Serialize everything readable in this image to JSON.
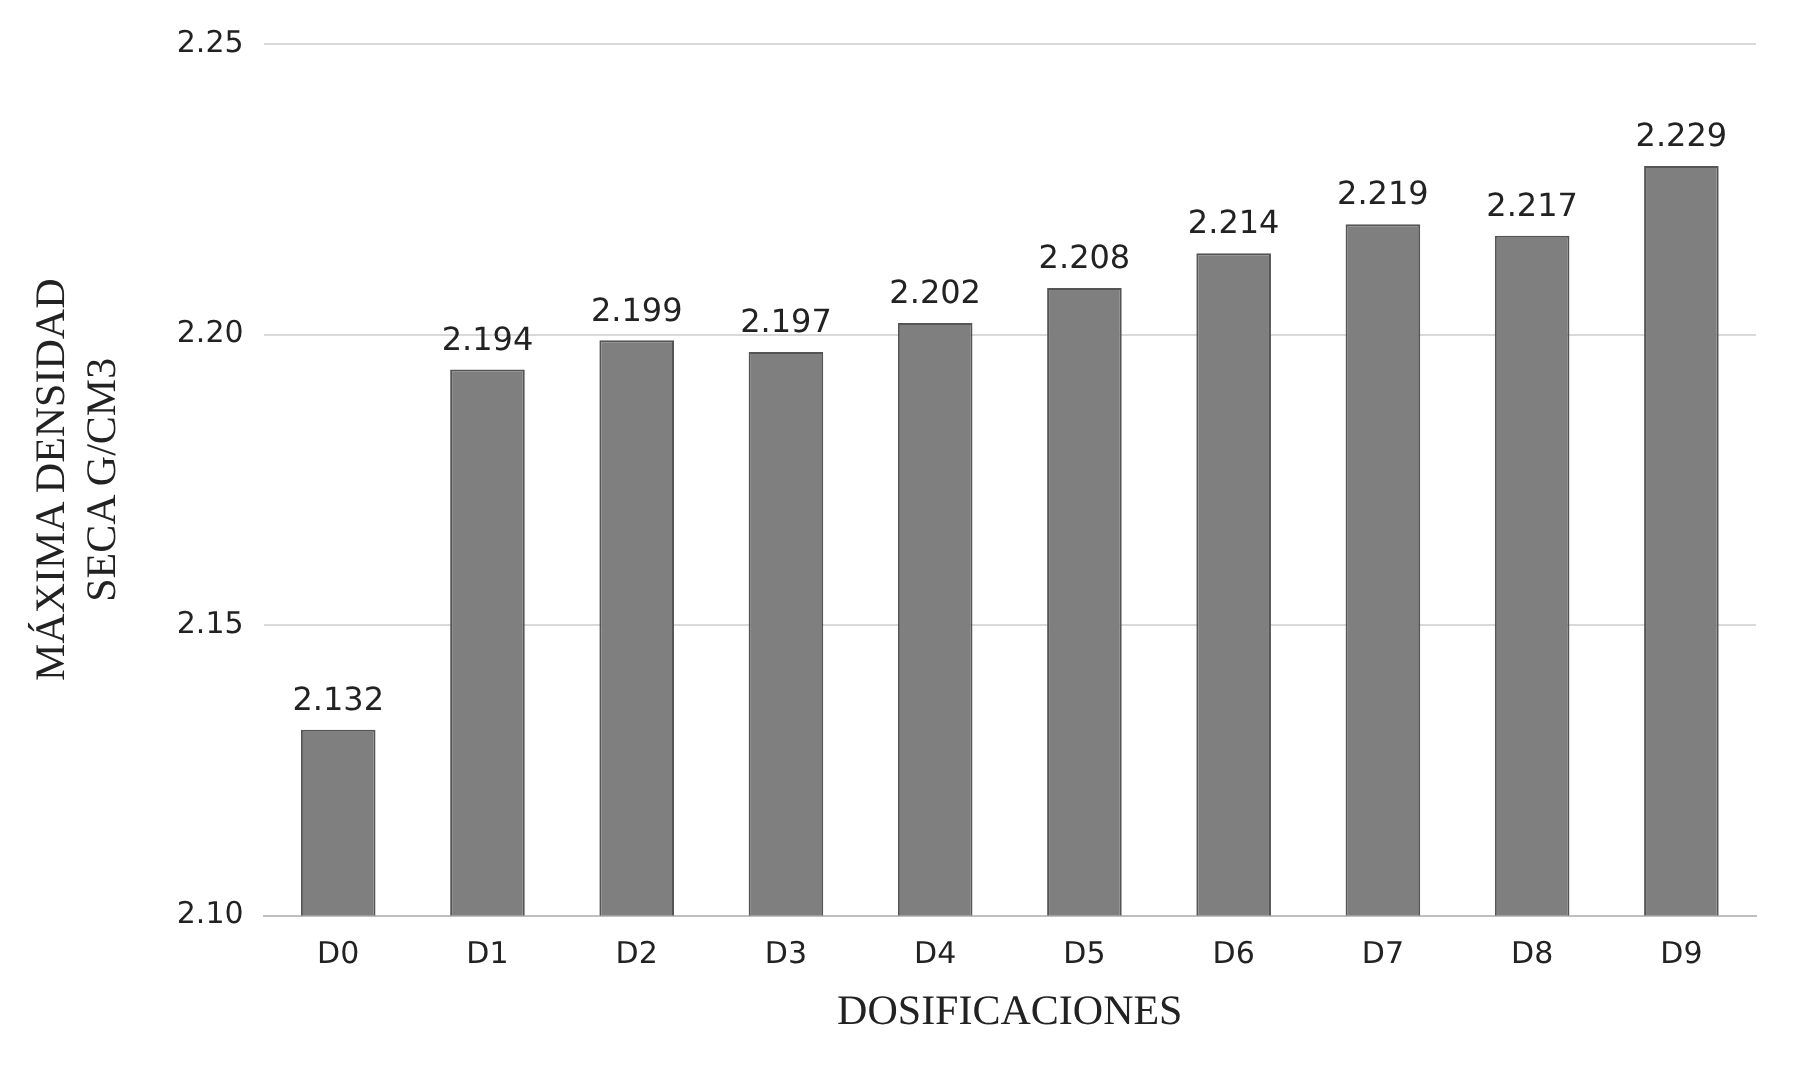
{
  "chart_data": {
    "type": "bar",
    "xlabel": "DOSIFICACIONES",
    "ylabel": "MÁXIMA DENSIDAD SECA G/CM3",
    "categories": [
      "D0",
      "D1",
      "D2",
      "D3",
      "D4",
      "D5",
      "D6",
      "D7",
      "D8",
      "D9"
    ],
    "values": [
      2.132,
      2.194,
      2.199,
      2.197,
      2.202,
      2.208,
      2.214,
      2.219,
      2.217,
      2.229
    ],
    "color": "#7f7f7f",
    "ylim": [
      2.1,
      2.25
    ],
    "yticks": [
      {
        "value": 2.1,
        "label": "2.10"
      },
      {
        "value": 2.15,
        "label": "2.15"
      },
      {
        "value": 2.2,
        "label": "2.20"
      },
      {
        "value": 2.25,
        "label": "2.25"
      }
    ],
    "grid": "y",
    "data_labels": true,
    "legend": false
  }
}
